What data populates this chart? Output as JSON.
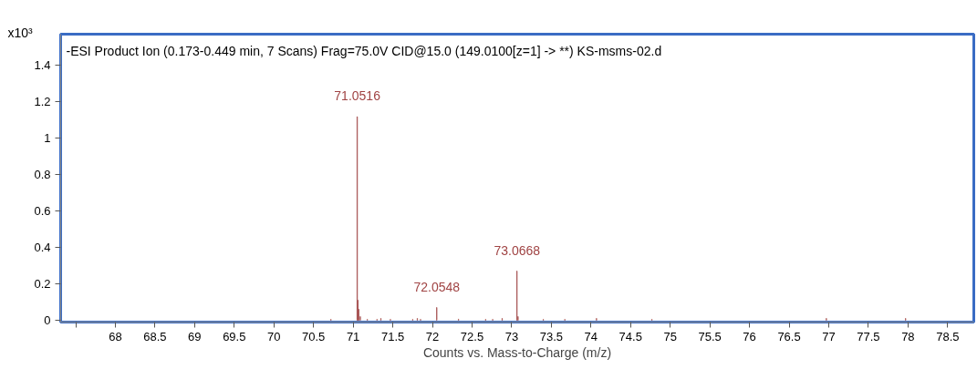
{
  "chart_data": {
    "type": "bar",
    "title": "-ESI Product Ion (0.173-0.449 min, 7 Scans) Frag=75.0V CID@15.0 (149.0100[z=1] -> **) KS-msms-02.d",
    "xlabel": "Counts vs. Mass-to-Charge (m/z)",
    "ylabel": "x10³",
    "x": [
      70.72,
      71.0516,
      71.06,
      71.07,
      71.09,
      71.18,
      71.3,
      71.35,
      71.47,
      71.75,
      71.81,
      71.85,
      72.0548,
      72.33,
      72.67,
      72.76,
      72.88,
      73.0668,
      73.08,
      73.4,
      73.67,
      74.07,
      74.77,
      76.97,
      77.97
    ],
    "values": [
      0.005,
      1.117,
      0.11,
      0.06,
      0.02,
      0.005,
      0.005,
      0.01,
      0.005,
      0.005,
      0.01,
      0.005,
      0.07,
      0.006,
      0.005,
      0.005,
      0.01,
      0.27,
      0.02,
      0.005,
      0.005,
      0.01,
      0.005,
      0.01,
      0.01
    ],
    "color": "#a04444",
    "annotations": [
      {
        "text": "71.0516",
        "x": 71.0516,
        "y": 1.117
      },
      {
        "text": "72.0548",
        "x": 72.0548,
        "y": 0.07
      },
      {
        "text": "73.0668",
        "x": 73.0668,
        "y": 0.27
      }
    ],
    "xlim": [
      67.31,
      78.83
    ],
    "ylim": [
      -0.01,
      1.57
    ],
    "xticks": [
      {
        "value": 67.5,
        "label": null
      },
      68,
      68.5,
      69,
      69.5,
      70,
      70.5,
      71,
      71.5,
      72,
      72.5,
      73,
      73.5,
      74,
      74.5,
      75,
      75.5,
      76,
      76.5,
      77,
      77.5,
      78,
      78.5
    ],
    "yticks": [
      0,
      0.2,
      0.4,
      0.6,
      0.8,
      1,
      1.2,
      1.4
    ],
    "grid": false
  }
}
